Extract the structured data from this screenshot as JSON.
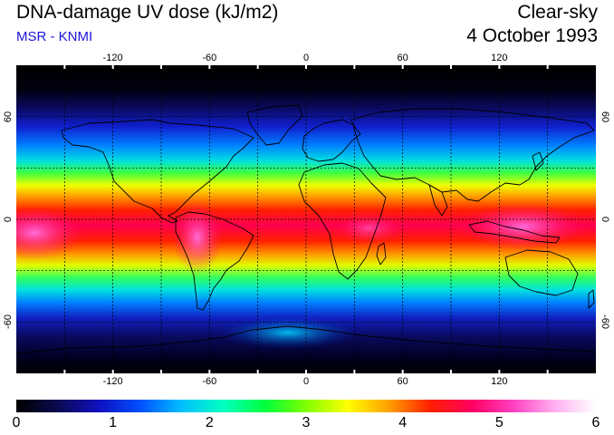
{
  "header": {
    "title": "DNA-damage UV dose (kJ/m2)",
    "subtitle": "MSR - KNMI",
    "condition": "Clear-sky",
    "date": "4 October 1993"
  },
  "map": {
    "projection": "equirectangular",
    "lon_range": [
      -180,
      180
    ],
    "lat_range": [
      -90,
      90
    ],
    "lon_ticks": [
      -120,
      -60,
      0,
      60,
      120
    ],
    "lon_tick_labels": [
      "-120",
      "-60",
      "0",
      "60",
      "120"
    ],
    "lat_ticks": [
      60,
      0,
      -60
    ],
    "lat_tick_labels_left": [
      "60",
      "0",
      "-60"
    ],
    "lat_tick_labels_right": [
      "60",
      "0",
      "-60"
    ],
    "grid_lons": [
      -150,
      -120,
      -90,
      -60,
      -30,
      0,
      30,
      60,
      90,
      120,
      150
    ],
    "grid_lats": [
      -60,
      -30,
      0,
      30,
      60
    ],
    "grid": "dashed",
    "coastlines": true
  },
  "colorbar": {
    "min": 0,
    "max": 6,
    "tick_labels": [
      "0",
      "1",
      "2",
      "3",
      "4",
      "5",
      "6"
    ],
    "colors": [
      "#000000",
      "#0a0a50",
      "#1010c0",
      "#0050ff",
      "#00c0ff",
      "#00ffc0",
      "#00ff40",
      "#80ff00",
      "#ffff00",
      "#ffa000",
      "#ff2000",
      "#ff0060",
      "#ff40c0",
      "#ffb0f0",
      "#ffffff"
    ]
  }
}
